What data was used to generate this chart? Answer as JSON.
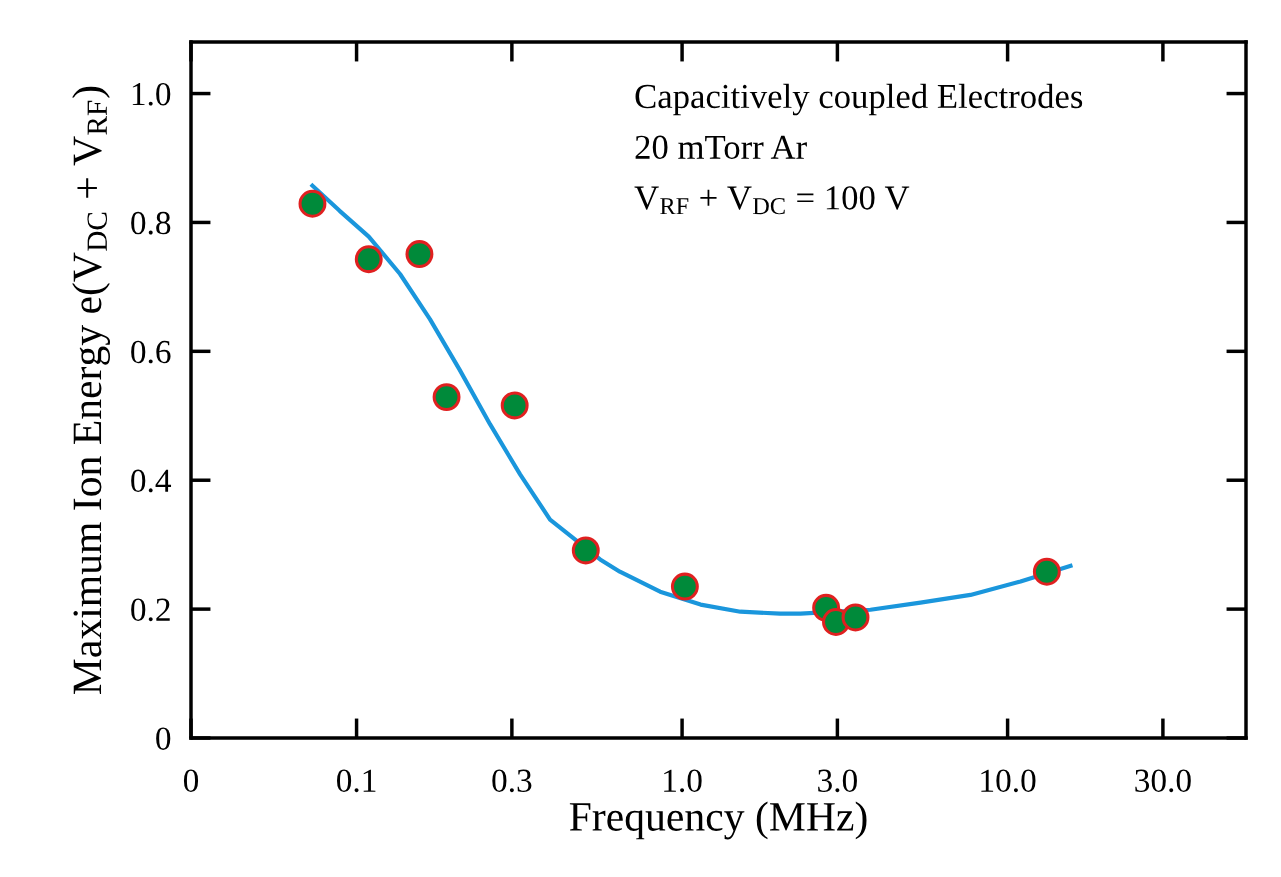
{
  "chart_data": {
    "type": "scatter",
    "xlabel": "Frequency (MHz)",
    "ylabel": "Maximum Ion Energy e(V$_{DC}$ + V$_{RF}$)",
    "annotations": [
      "Capacitively coupled Electrodes",
      "20 mTorr Ar",
      "V$_{RF}$ + V$_{DC}$ = 100 V"
    ],
    "log": "x",
    "xlim": [
      0.031,
      54
    ],
    "ylim": [
      0,
      1.08
    ],
    "xticks": [
      {
        "value": 0.031,
        "label": "0"
      },
      0.1,
      0.3,
      {
        "value": 1,
        "label": "1.0"
      },
      {
        "value": 3,
        "label": "3.0"
      },
      {
        "value": 10,
        "label": "10.0"
      },
      {
        "value": 30,
        "label": "30.0"
      }
    ],
    "yticks": [
      {
        "value": 0,
        "label": "0"
      },
      0.2,
      0.4,
      0.6,
      0.8,
      {
        "value": 1,
        "label": "1.0"
      }
    ],
    "grid": false,
    "legend": false,
    "series": [
      {
        "type": "line",
        "color": "#1a96dc",
        "marker": "none",
        "line_style": "solid",
        "x": [
          0.0732,
          0.0887,
          0.109,
          0.136,
          0.168,
          0.207,
          0.257,
          0.318,
          0.393,
          0.56,
          0.644,
          0.856,
          1.14,
          1.51,
          2.0,
          2.31,
          3.79,
          5.4,
          7.69,
          10.96,
          15.6
        ],
        "values": [
          0.857,
          0.818,
          0.778,
          0.72,
          0.65,
          0.572,
          0.487,
          0.409,
          0.339,
          0.277,
          0.258,
          0.227,
          0.207,
          0.196,
          0.193,
          0.193,
          0.199,
          0.21,
          0.222,
          0.243,
          0.267
        ]
      },
      {
        "color": "#008a3a",
        "marker": "circle",
        "x": [
          0.0732,
          0.109,
          0.156,
          0.189,
          0.306,
          0.506,
          1.02,
          2.77,
          2.97,
          3.41,
          13.2
        ],
        "values": [
          0.829,
          0.743,
          0.751,
          0.529,
          0.516,
          0.291,
          0.235,
          0.202,
          0.18,
          0.187,
          0.258
        ]
      }
    ]
  }
}
